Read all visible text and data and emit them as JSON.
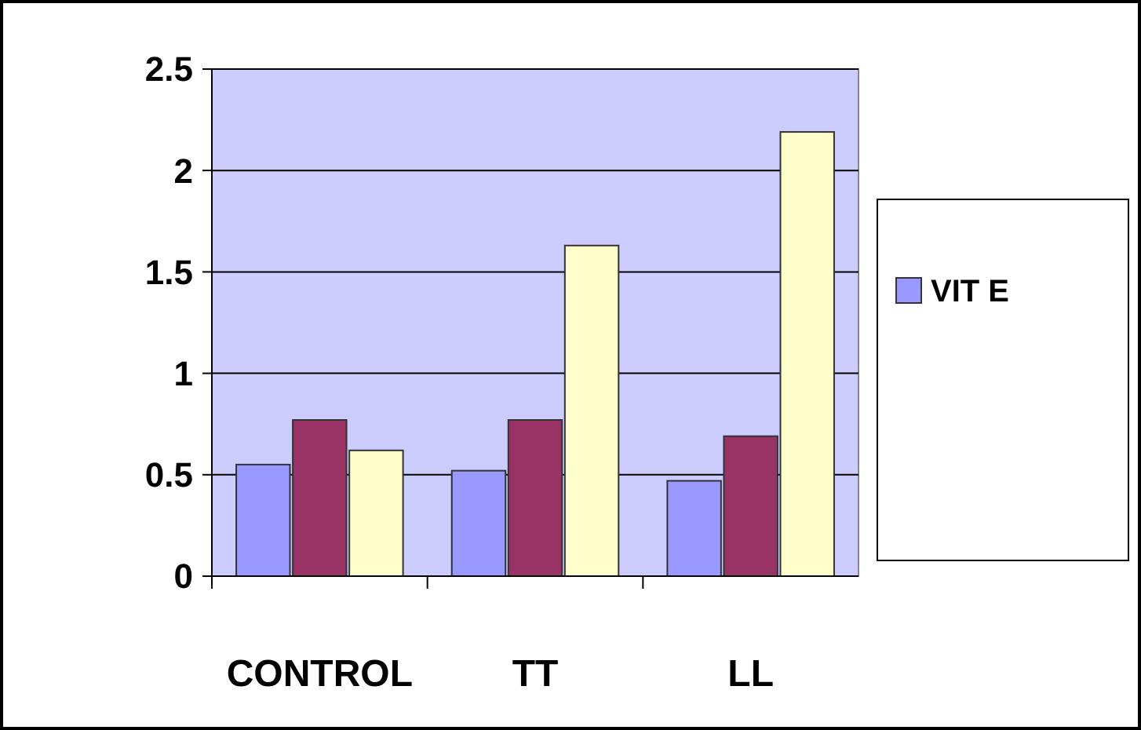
{
  "chart_data": {
    "type": "bar",
    "categories": [
      "CONTROL",
      "TT",
      "LL"
    ],
    "series": [
      {
        "name": "VIT E",
        "color": "#9999ff",
        "values": [
          0.55,
          0.52,
          0.47
        ]
      },
      {
        "color": "#993366",
        "values": [
          0.77,
          0.77,
          0.69
        ]
      },
      {
        "color": "#ffffcc",
        "values": [
          0.62,
          1.63,
          2.19
        ]
      }
    ],
    "ylim": [
      0,
      2.5
    ],
    "yticks": [
      0,
      0.5,
      1,
      1.5,
      2,
      2.5
    ],
    "grid": "y",
    "legend": "right"
  }
}
